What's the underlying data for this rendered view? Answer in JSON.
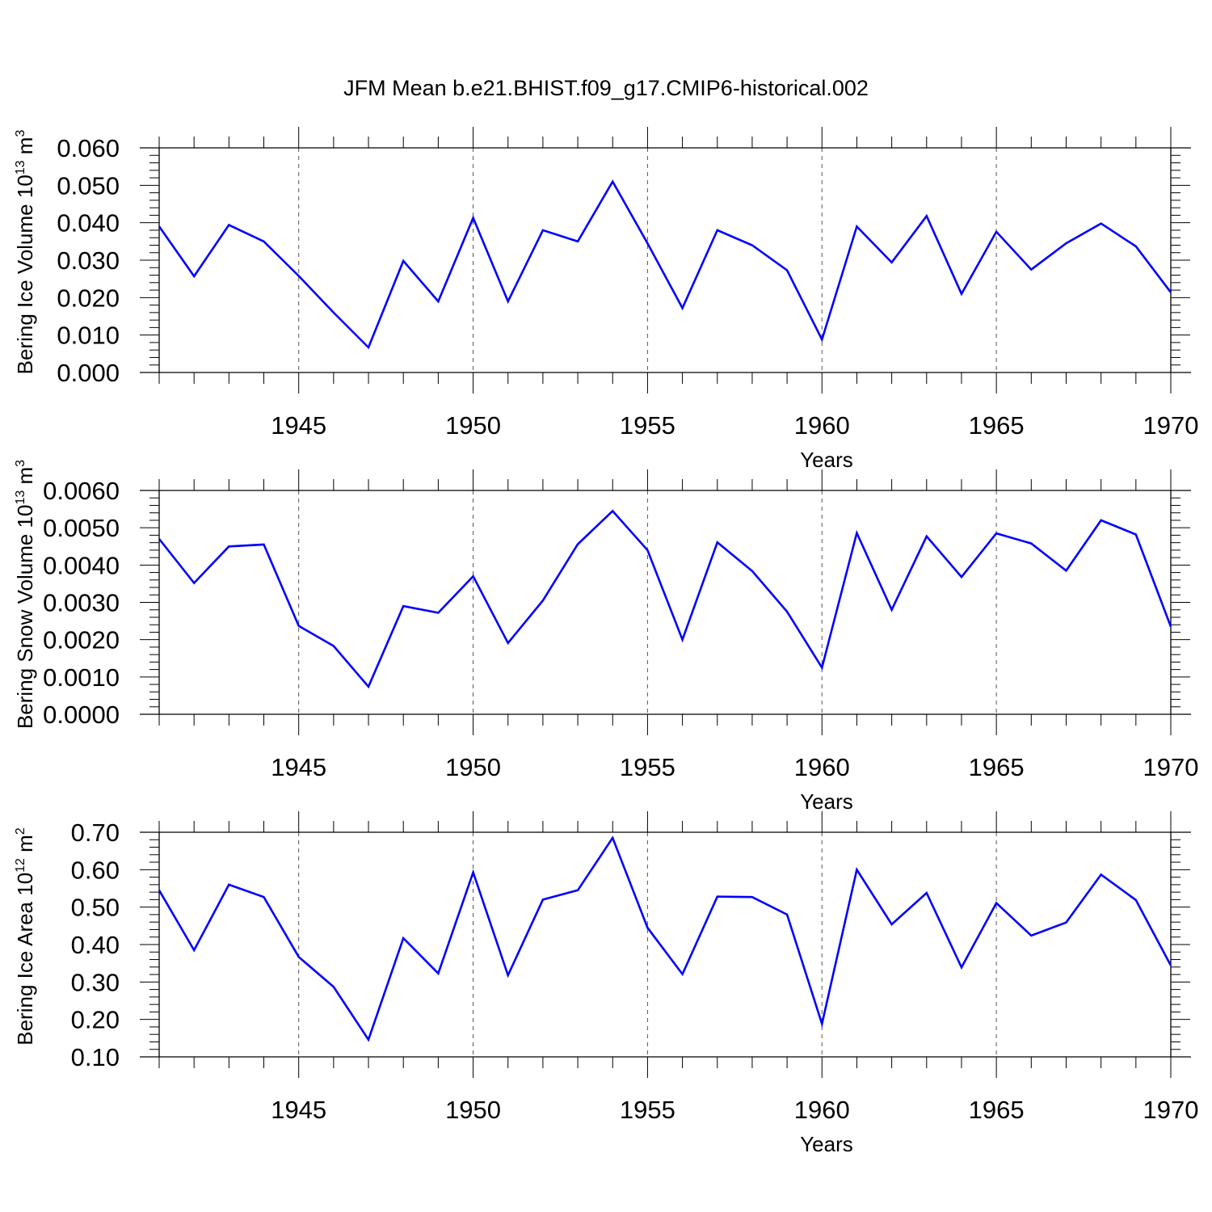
{
  "figure": {
    "title": "JFM Mean b.e21.BHIST.f09_g17.CMIP6-historical.002",
    "line_color": "#0000ff",
    "grid_color": "#555555"
  },
  "chart_data": [
    {
      "type": "line",
      "xlabel": "Years",
      "ylabel_main": "Bering Ice Volume 10",
      "ylabel_sup": "13",
      "ylabel_tail": " m",
      "ylabel_unit_sup": "3",
      "xlim": [
        1941,
        1970
      ],
      "ylim": [
        0.0,
        0.06
      ],
      "x_ticks": [
        "1945",
        "1950",
        "1955",
        "1960",
        "1965",
        "1970"
      ],
      "y_ticks": [
        "0.000",
        "0.010",
        "0.020",
        "0.030",
        "0.040",
        "0.050",
        "0.060"
      ],
      "grid": "vertical dashed at major x ticks",
      "x": [
        1941,
        1942,
        1943,
        1944,
        1945,
        1946,
        1947,
        1948,
        1949,
        1950,
        1951,
        1952,
        1953,
        1954,
        1955,
        1956,
        1957,
        1958,
        1959,
        1960,
        1961,
        1962,
        1963,
        1964,
        1965,
        1966,
        1967,
        1968,
        1969,
        1970
      ],
      "values": [
        0.039,
        0.0257,
        0.0394,
        0.035,
        0.0258,
        0.016,
        0.0067,
        0.0298,
        0.019,
        0.0413,
        0.019,
        0.038,
        0.035,
        0.051,
        0.0345,
        0.0172,
        0.038,
        0.034,
        0.0273,
        0.0088,
        0.039,
        0.0294,
        0.0418,
        0.021,
        0.0376,
        0.0275,
        0.0345,
        0.0398,
        0.0337,
        0.0214
      ]
    },
    {
      "type": "line",
      "xlabel": "Years",
      "ylabel_main": "Bering Snow Volume 10",
      "ylabel_sup": "13",
      "ylabel_tail": " m",
      "ylabel_unit_sup": "3",
      "xlim": [
        1941,
        1970
      ],
      "ylim": [
        0.0,
        0.006
      ],
      "x_ticks": [
        "1945",
        "1950",
        "1955",
        "1960",
        "1965",
        "1970"
      ],
      "y_ticks": [
        "0.0000",
        "0.0010",
        "0.0020",
        "0.0030",
        "0.0040",
        "0.0050",
        "0.0060"
      ],
      "grid": "vertical dashed at major x ticks",
      "x": [
        1941,
        1942,
        1943,
        1944,
        1945,
        1946,
        1947,
        1948,
        1949,
        1950,
        1951,
        1952,
        1953,
        1954,
        1955,
        1956,
        1957,
        1958,
        1959,
        1960,
        1961,
        1962,
        1963,
        1964,
        1965,
        1966,
        1967,
        1968,
        1969,
        1970
      ],
      "values": [
        0.0047,
        0.00352,
        0.0045,
        0.00455,
        0.00237,
        0.00183,
        0.00074,
        0.0029,
        0.00272,
        0.0037,
        0.00191,
        0.00305,
        0.00456,
        0.00545,
        0.0044,
        0.002,
        0.00461,
        0.00384,
        0.00275,
        0.00125,
        0.00486,
        0.0028,
        0.00477,
        0.00368,
        0.00485,
        0.00458,
        0.00385,
        0.0052,
        0.00482,
        0.00235
      ]
    },
    {
      "type": "line",
      "xlabel": "Years",
      "ylabel_main": "Bering Ice Area 10",
      "ylabel_sup": "12",
      "ylabel_tail": " m",
      "ylabel_unit_sup": "2",
      "xlim": [
        1941,
        1970
      ],
      "ylim": [
        0.1,
        0.7
      ],
      "x_ticks": [
        "1945",
        "1950",
        "1955",
        "1960",
        "1965",
        "1970"
      ],
      "y_ticks": [
        "0.10",
        "0.20",
        "0.30",
        "0.40",
        "0.50",
        "0.60",
        "0.70"
      ],
      "grid": "vertical dashed at major x ticks",
      "x": [
        1941,
        1942,
        1943,
        1944,
        1945,
        1946,
        1947,
        1948,
        1949,
        1950,
        1951,
        1952,
        1953,
        1954,
        1955,
        1956,
        1957,
        1958,
        1959,
        1960,
        1961,
        1962,
        1963,
        1964,
        1965,
        1966,
        1967,
        1968,
        1969,
        1970
      ],
      "values": [
        0.545,
        0.385,
        0.56,
        0.527,
        0.367,
        0.287,
        0.146,
        0.417,
        0.323,
        0.593,
        0.318,
        0.52,
        0.545,
        0.685,
        0.445,
        0.321,
        0.528,
        0.527,
        0.48,
        0.188,
        0.6,
        0.454,
        0.538,
        0.339,
        0.511,
        0.424,
        0.459,
        0.587,
        0.519,
        0.344
      ]
    }
  ]
}
